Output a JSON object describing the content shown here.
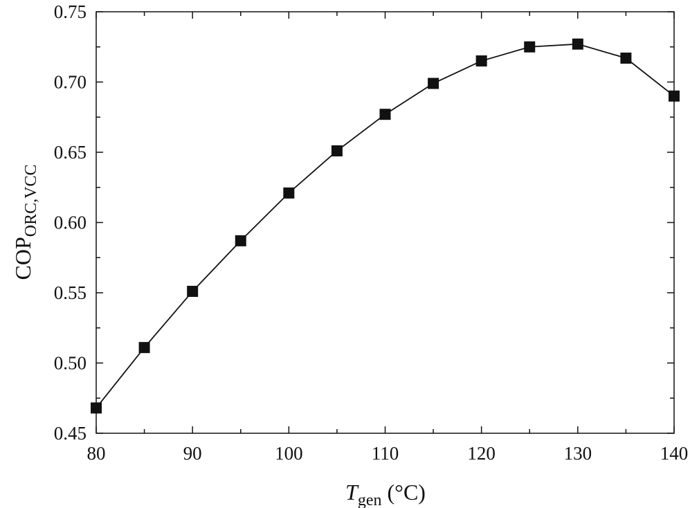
{
  "chart_data": {
    "type": "line",
    "xlabel": {
      "main": "T",
      "sub": "gen",
      "unit": " (°C)"
    },
    "ylabel": {
      "main": "COP",
      "sub": "ORC,VCC"
    },
    "xlim": [
      80,
      140
    ],
    "ylim": [
      0.45,
      0.75
    ],
    "xticks": [
      "80",
      "90",
      "100",
      "110",
      "120",
      "130",
      "140"
    ],
    "yticks": [
      "0.45",
      "0.50",
      "0.55",
      "0.60",
      "0.65",
      "0.70",
      "0.75"
    ],
    "grid": false,
    "marker": "square",
    "series": [
      {
        "x": [
          80,
          85,
          90,
          95,
          100,
          105,
          110,
          115,
          120,
          125,
          130,
          135,
          140
        ],
        "values": [
          0.468,
          0.511,
          0.551,
          0.587,
          0.621,
          0.651,
          0.677,
          0.699,
          0.715,
          0.725,
          0.727,
          0.717,
          0.69
        ]
      }
    ],
    "colors": {
      "line": "#111111",
      "marker": "#111111",
      "axes": "#111111"
    }
  }
}
